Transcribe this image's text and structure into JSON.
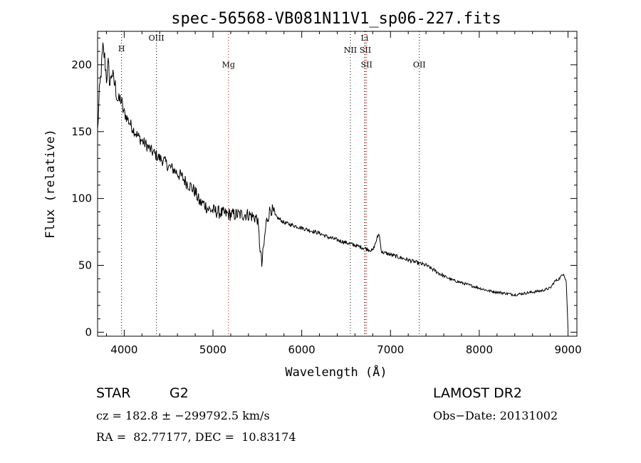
{
  "chart_data": {
    "type": "line",
    "title": "spec-56568-VB081N11V1_sp06-227.fits",
    "xlabel": "Wavelength (Å)",
    "ylabel": "Flux (relative)",
    "xlim": [
      3700,
      9100
    ],
    "ylim": [
      -3,
      225
    ],
    "x_ticks": [
      4000,
      5000,
      6000,
      7000,
      8000,
      9000
    ],
    "y_ticks": [
      0,
      50,
      100,
      150,
      200
    ],
    "grid": false,
    "legend": "none",
    "series": [
      {
        "points": [
          [
            3700,
            150
          ],
          [
            3720,
            178
          ],
          [
            3740,
            195
          ],
          [
            3760,
            212
          ],
          [
            3780,
            205
          ],
          [
            3800,
            190
          ],
          [
            3820,
            200
          ],
          [
            3840,
            185
          ],
          [
            3860,
            195
          ],
          [
            3880,
            188
          ],
          [
            3900,
            184
          ],
          [
            3920,
            176
          ],
          [
            3940,
            172
          ],
          [
            3960,
            175
          ],
          [
            3980,
            168
          ],
          [
            4000,
            164
          ],
          [
            4050,
            158
          ],
          [
            4100,
            152
          ],
          [
            4150,
            147
          ],
          [
            4200,
            143
          ],
          [
            4250,
            140
          ],
          [
            4300,
            136
          ],
          [
            4350,
            133
          ],
          [
            4400,
            130
          ],
          [
            4450,
            128
          ],
          [
            4500,
            124
          ],
          [
            4550,
            122
          ],
          [
            4600,
            119
          ],
          [
            4650,
            116
          ],
          [
            4700,
            112
          ],
          [
            4750,
            109
          ],
          [
            4800,
            105
          ],
          [
            4850,
            97
          ],
          [
            4900,
            96
          ],
          [
            4950,
            92
          ],
          [
            5000,
            91
          ],
          [
            5100,
            89
          ],
          [
            5200,
            88
          ],
          [
            5300,
            88
          ],
          [
            5400,
            88
          ],
          [
            5500,
            85
          ],
          [
            5550,
            50
          ],
          [
            5600,
            82
          ],
          [
            5650,
            93
          ],
          [
            5700,
            87
          ],
          [
            5800,
            82
          ],
          [
            5900,
            80
          ],
          [
            6000,
            78
          ],
          [
            6100,
            76
          ],
          [
            6200,
            74
          ],
          [
            6300,
            71
          ],
          [
            6400,
            69
          ],
          [
            6500,
            67
          ],
          [
            6600,
            65
          ],
          [
            6700,
            63
          ],
          [
            6800,
            61
          ],
          [
            6870,
            74
          ],
          [
            6900,
            60
          ],
          [
            7000,
            58
          ],
          [
            7100,
            56
          ],
          [
            7200,
            54
          ],
          [
            7300,
            52
          ],
          [
            7400,
            50
          ],
          [
            7500,
            46
          ],
          [
            7600,
            42
          ],
          [
            7700,
            39
          ],
          [
            7800,
            37
          ],
          [
            7900,
            35
          ],
          [
            8000,
            33
          ],
          [
            8100,
            31
          ],
          [
            8200,
            30
          ],
          [
            8300,
            29
          ],
          [
            8400,
            28
          ],
          [
            8500,
            29
          ],
          [
            8600,
            30
          ],
          [
            8700,
            31
          ],
          [
            8800,
            33
          ],
          [
            8850,
            38
          ],
          [
            8900,
            40
          ],
          [
            8950,
            44
          ],
          [
            8980,
            38
          ],
          [
            9000,
            2
          ]
        ]
      }
    ],
    "lines": [
      {
        "label": "H",
        "x": 3970,
        "label_y": 210,
        "color": "#000000"
      },
      {
        "label": "OIII",
        "x": 4363,
        "label_y": 218,
        "color": "#000000"
      },
      {
        "label": "Mg",
        "x": 5175,
        "label_y": 198,
        "color": "#cc0000"
      },
      {
        "label": "NII",
        "x": 6548,
        "label_y": 209,
        "color": "#000000"
      },
      {
        "label": "Li",
        "x": 6708,
        "label_y": 218,
        "color": "#000000"
      },
      {
        "label": "SII",
        "x": 6717,
        "label_y": 209,
        "color": "#cc0000"
      },
      {
        "label": "SII",
        "x": 6731,
        "label_y": 198,
        "color": "#cc0000"
      },
      {
        "label": "OII",
        "x": 7325,
        "label_y": 198,
        "color": "#000000"
      }
    ]
  },
  "info": {
    "class": "STAR",
    "subclass": "G2",
    "survey": "LAMOST DR2",
    "cz": "cz = 182.8 ± −299792.5 km/s",
    "obs_date": "Obs−Date: 20131002",
    "coords": "RA =  82.77177, DEC =  10.83174"
  }
}
